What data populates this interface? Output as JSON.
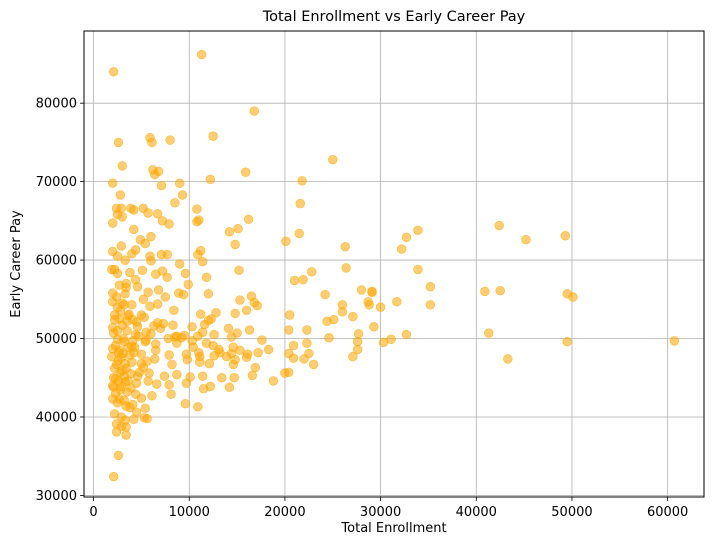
{
  "chart_data": {
    "type": "scatter",
    "title": "Total Enrollment vs Early Career Pay",
    "xlabel": "Total Enrollment",
    "ylabel": "Early Career Pay",
    "xlim": [
      -1000,
      63800
    ],
    "ylim": [
      29800,
      89200
    ],
    "xticks": [
      0,
      10000,
      20000,
      30000,
      40000,
      50000,
      60000
    ],
    "yticks": [
      30000,
      40000,
      50000,
      60000,
      70000,
      80000
    ],
    "grid": true,
    "point_color": "#FFA500",
    "point_opacity": 0.55,
    "points": [
      [
        2100,
        84000
      ],
      [
        11300,
        86200
      ],
      [
        16800,
        79000
      ],
      [
        12500,
        75800
      ],
      [
        5900,
        75600
      ],
      [
        8000,
        75300
      ],
      [
        2600,
        75000
      ],
      [
        6100,
        75000
      ],
      [
        25000,
        72800
      ],
      [
        3000,
        72000
      ],
      [
        6200,
        71500
      ],
      [
        6800,
        71300
      ],
      [
        15900,
        71200
      ],
      [
        6400,
        70900
      ],
      [
        12200,
        70300
      ],
      [
        21800,
        70100
      ],
      [
        2000,
        69800
      ],
      [
        9000,
        69800
      ],
      [
        7100,
        69500
      ],
      [
        9300,
        68300
      ],
      [
        2800,
        68300
      ],
      [
        5200,
        66600
      ],
      [
        8500,
        67300
      ],
      [
        3900,
        66600
      ],
      [
        4200,
        66400
      ],
      [
        2400,
        66600
      ],
      [
        2900,
        66600
      ],
      [
        10800,
        66500
      ],
      [
        5700,
        66000
      ],
      [
        6700,
        65900
      ],
      [
        2500,
        65800
      ],
      [
        11000,
        65100
      ],
      [
        7200,
        65000
      ],
      [
        10800,
        64900
      ],
      [
        7900,
        64600
      ],
      [
        3000,
        65500
      ],
      [
        21600,
        67200
      ],
      [
        2000,
        64700
      ],
      [
        16200,
        65200
      ],
      [
        14200,
        63600
      ],
      [
        15100,
        64000
      ],
      [
        21500,
        63400
      ],
      [
        33900,
        63800
      ],
      [
        42400,
        64400
      ],
      [
        45200,
        62600
      ],
      [
        49300,
        63100
      ],
      [
        32700,
        62900
      ],
      [
        4200,
        63900
      ],
      [
        4900,
        62600
      ],
      [
        5400,
        62100
      ],
      [
        6000,
        63000
      ],
      [
        14800,
        62000
      ],
      [
        20100,
        62400
      ],
      [
        26300,
        61700
      ],
      [
        32200,
        61400
      ],
      [
        2900,
        61800
      ],
      [
        4000,
        60800
      ],
      [
        4400,
        61300
      ],
      [
        5900,
        60500
      ],
      [
        7100,
        60700
      ],
      [
        7700,
        60700
      ],
      [
        10900,
        60700
      ],
      [
        11200,
        61200
      ],
      [
        2000,
        61100
      ],
      [
        2500,
        60500
      ],
      [
        3300,
        60000
      ],
      [
        6000,
        59900
      ],
      [
        9000,
        59500
      ],
      [
        11400,
        59800
      ],
      [
        26400,
        59000
      ],
      [
        33900,
        58800
      ],
      [
        15200,
        58700
      ],
      [
        22800,
        58500
      ],
      [
        5100,
        58700
      ],
      [
        6500,
        58200
      ],
      [
        7200,
        58600
      ],
      [
        9600,
        58300
      ],
      [
        3800,
        58400
      ],
      [
        2200,
        58800
      ],
      [
        1900,
        58800
      ],
      [
        2500,
        58300
      ],
      [
        2700,
        56800
      ],
      [
        3400,
        57000
      ],
      [
        4400,
        57500
      ],
      [
        7700,
        57800
      ],
      [
        9900,
        56900
      ],
      [
        11800,
        57800
      ],
      [
        21000,
        57400
      ],
      [
        21900,
        57500
      ],
      [
        28000,
        56200
      ],
      [
        29100,
        56000
      ],
      [
        35200,
        56600
      ],
      [
        40900,
        56000
      ],
      [
        42500,
        56100
      ],
      [
        49500,
        55700
      ],
      [
        50100,
        55300
      ],
      [
        3400,
        56500
      ],
      [
        4600,
        56600
      ],
      [
        6800,
        56200
      ],
      [
        8900,
        55800
      ],
      [
        5700,
        55900
      ],
      [
        2000,
        55800
      ],
      [
        2400,
        55300
      ],
      [
        3300,
        55700
      ],
      [
        5200,
        55000
      ],
      [
        7500,
        55300
      ],
      [
        9400,
        55600
      ],
      [
        12000,
        55700
      ],
      [
        15300,
        54900
      ],
      [
        16500,
        55400
      ],
      [
        16800,
        54600
      ],
      [
        17100,
        54200
      ],
      [
        24200,
        55600
      ],
      [
        26000,
        54300
      ],
      [
        28800,
        54300
      ],
      [
        31700,
        54700
      ],
      [
        35200,
        54300
      ],
      [
        41300,
        50700
      ],
      [
        43300,
        47400
      ],
      [
        49500,
        49600
      ],
      [
        60700,
        49700
      ],
      [
        2000,
        54700
      ],
      [
        2500,
        54000
      ],
      [
        3000,
        54500
      ],
      [
        4000,
        54300
      ],
      [
        5900,
        54100
      ],
      [
        6700,
        54400
      ],
      [
        8400,
        53600
      ],
      [
        11200,
        53100
      ],
      [
        12300,
        52500
      ],
      [
        12800,
        53300
      ],
      [
        14800,
        53200
      ],
      [
        16000,
        53600
      ],
      [
        20500,
        53000
      ],
      [
        25100,
        52400
      ],
      [
        26000,
        53400
      ],
      [
        27100,
        52800
      ],
      [
        29300,
        51500
      ],
      [
        30000,
        54000
      ],
      [
        2200,
        53000
      ],
      [
        2700,
        52500
      ],
      [
        3600,
        52900
      ],
      [
        4500,
        52100
      ],
      [
        5300,
        52700
      ],
      [
        6700,
        52000
      ],
      [
        8300,
        51700
      ],
      [
        10300,
        51500
      ],
      [
        11600,
        51800
      ],
      [
        14100,
        51300
      ],
      [
        16300,
        51100
      ],
      [
        20400,
        51100
      ],
      [
        22300,
        51100
      ],
      [
        24400,
        52200
      ],
      [
        27700,
        50600
      ],
      [
        32700,
        50500
      ],
      [
        2000,
        51400
      ],
      [
        3500,
        51000
      ],
      [
        4400,
        50500
      ],
      [
        5500,
        50800
      ],
      [
        7000,
        51300
      ],
      [
        8700,
        50300
      ],
      [
        9500,
        50400
      ],
      [
        11400,
        50800
      ],
      [
        12600,
        50500
      ],
      [
        14400,
        50200
      ],
      [
        15000,
        50700
      ],
      [
        17600,
        49800
      ],
      [
        20900,
        49100
      ],
      [
        22300,
        49400
      ],
      [
        24600,
        50100
      ],
      [
        27600,
        49600
      ],
      [
        30300,
        49500
      ],
      [
        31100,
        49900
      ],
      [
        2500,
        49900
      ],
      [
        3100,
        50000
      ],
      [
        4100,
        49700
      ],
      [
        5400,
        49600
      ],
      [
        6500,
        49300
      ],
      [
        8700,
        49400
      ],
      [
        10400,
        48900
      ],
      [
        11000,
        48200
      ],
      [
        13200,
        48200
      ],
      [
        14600,
        48900
      ],
      [
        17200,
        48200
      ],
      [
        18300,
        48600
      ],
      [
        20400,
        48100
      ],
      [
        22500,
        48100
      ],
      [
        27600,
        48600
      ],
      [
        2000,
        48700
      ],
      [
        2700,
        48500
      ],
      [
        3100,
        48100
      ],
      [
        4200,
        48200
      ],
      [
        5000,
        48000
      ],
      [
        6500,
        48500
      ],
      [
        7900,
        47900
      ],
      [
        9700,
        48000
      ],
      [
        11100,
        47700
      ],
      [
        12600,
        47800
      ],
      [
        14800,
        47300
      ],
      [
        16000,
        47600
      ],
      [
        20900,
        47500
      ],
      [
        22000,
        47400
      ],
      [
        23000,
        46700
      ],
      [
        27100,
        47700
      ],
      [
        1900,
        47700
      ],
      [
        2600,
        47200
      ],
      [
        3300,
        46800
      ],
      [
        4000,
        47000
      ],
      [
        5000,
        46800
      ],
      [
        6400,
        47400
      ],
      [
        8200,
        46700
      ],
      [
        9800,
        47300
      ],
      [
        11100,
        47000
      ],
      [
        12100,
        46800
      ],
      [
        14600,
        46700
      ],
      [
        16900,
        46300
      ],
      [
        18800,
        44600
      ],
      [
        20000,
        45600
      ],
      [
        20400,
        45700
      ],
      [
        2200,
        46200
      ],
      [
        3000,
        45900
      ],
      [
        3900,
        45500
      ],
      [
        4600,
        45200
      ],
      [
        5800,
        45600
      ],
      [
        7400,
        45200
      ],
      [
        8700,
        45400
      ],
      [
        10100,
        45100
      ],
      [
        11400,
        45200
      ],
      [
        13400,
        45000
      ],
      [
        14700,
        45000
      ],
      [
        16600,
        45300
      ],
      [
        2300,
        44900
      ],
      [
        2600,
        44600
      ],
      [
        3300,
        44500
      ],
      [
        4500,
        44300
      ],
      [
        5700,
        44600
      ],
      [
        6600,
        44200
      ],
      [
        7900,
        44100
      ],
      [
        9700,
        44300
      ],
      [
        11500,
        43600
      ],
      [
        12200,
        43900
      ],
      [
        14200,
        43800
      ],
      [
        2100,
        43800
      ],
      [
        2800,
        43500
      ],
      [
        3500,
        43200
      ],
      [
        4400,
        42900
      ],
      [
        5000,
        42400
      ],
      [
        6100,
        42700
      ],
      [
        8100,
        42900
      ],
      [
        2000,
        42300
      ],
      [
        2500,
        41800
      ],
      [
        3400,
        41400
      ],
      [
        4100,
        41600
      ],
      [
        5400,
        41100
      ],
      [
        9600,
        41700
      ],
      [
        10900,
        41300
      ],
      [
        2200,
        40400
      ],
      [
        2900,
        40000
      ],
      [
        3300,
        39600
      ],
      [
        4200,
        39700
      ],
      [
        5600,
        39800
      ],
      [
        5300,
        39900
      ],
      [
        2400,
        39100
      ],
      [
        2900,
        38800
      ],
      [
        3400,
        38700
      ],
      [
        2400,
        38100
      ],
      [
        3400,
        37700
      ],
      [
        2600,
        35100
      ],
      [
        2100,
        32400
      ],
      [
        2300,
        49100
      ],
      [
        2600,
        48200
      ],
      [
        2900,
        47600
      ],
      [
        3200,
        49600
      ],
      [
        3600,
        48900
      ],
      [
        3800,
        47900
      ],
      [
        4300,
        48900
      ],
      [
        4700,
        50300
      ],
      [
        2100,
        50700
      ],
      [
        2500,
        51000
      ],
      [
        3000,
        51700
      ],
      [
        3500,
        52200
      ],
      [
        2200,
        52400
      ],
      [
        2800,
        53500
      ],
      [
        3200,
        54300
      ],
      [
        3700,
        53100
      ],
      [
        4100,
        52400
      ],
      [
        2400,
        46700
      ],
      [
        2800,
        45700
      ],
      [
        3200,
        45200
      ],
      [
        3600,
        44600
      ],
      [
        3900,
        43700
      ],
      [
        2000,
        44000
      ],
      [
        2300,
        43000
      ],
      [
        2700,
        42300
      ],
      [
        3200,
        42100
      ],
      [
        3800,
        41200
      ],
      [
        4500,
        40600
      ],
      [
        4800,
        45700
      ],
      [
        5200,
        46300
      ],
      [
        5600,
        47100
      ],
      [
        2100,
        45000
      ],
      [
        2900,
        43900
      ],
      [
        3400,
        46200
      ],
      [
        4000,
        49000
      ],
      [
        4600,
        51500
      ],
      [
        5000,
        53000
      ],
      [
        5500,
        49800
      ],
      [
        6000,
        50600
      ],
      [
        6300,
        51600
      ],
      [
        7300,
        51900
      ],
      [
        7800,
        50000
      ],
      [
        8500,
        50200
      ],
      [
        9200,
        50100
      ],
      [
        10300,
        49700
      ],
      [
        10900,
        50300
      ],
      [
        11800,
        49400
      ],
      [
        12500,
        49100
      ],
      [
        13100,
        48600
      ],
      [
        13900,
        47700
      ],
      [
        15300,
        48500
      ],
      [
        16100,
        48000
      ],
      [
        12000,
        52300
      ],
      [
        14400,
        48100
      ],
      [
        28700,
        54700
      ],
      [
        29100,
        55900
      ]
    ]
  }
}
